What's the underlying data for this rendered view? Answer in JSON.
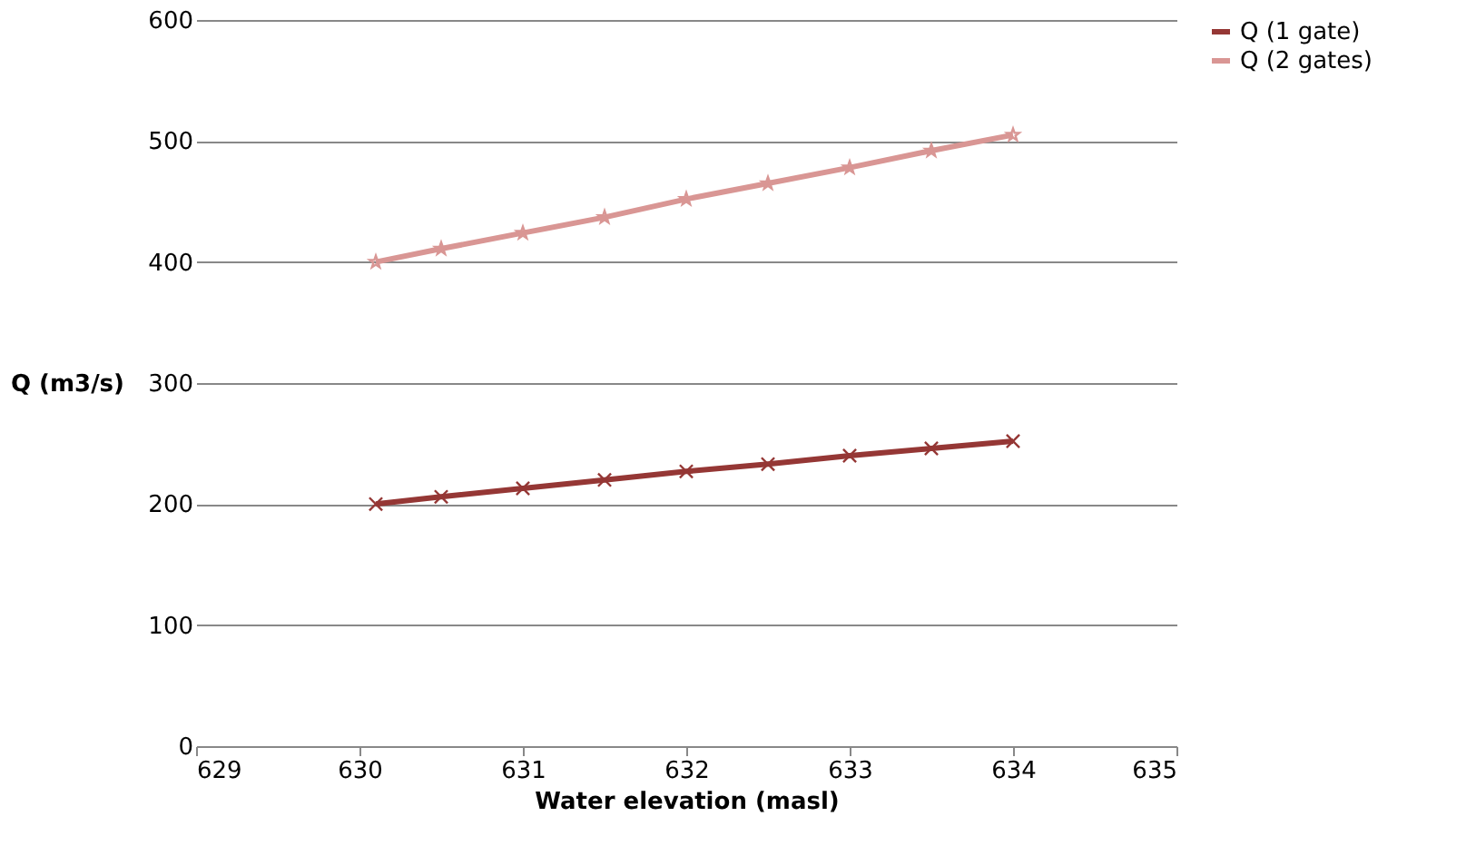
{
  "chart_data": {
    "type": "line",
    "xlabel": "Water elevation (masl)",
    "ylabel": "Q (m3/s)",
    "xlim": [
      629,
      635
    ],
    "xticks": [
      629,
      630,
      631,
      632,
      633,
      634,
      635
    ],
    "ylim": [
      0,
      600
    ],
    "yticks": [
      0,
      100,
      200,
      300,
      400,
      500,
      600
    ],
    "grid": "y",
    "legend": "right",
    "line_style": "solid",
    "series": [
      {
        "name": "Q (1 gate)",
        "color": "#953735",
        "marker": "cross",
        "x": [
          630.1,
          630.5,
          631,
          631.5,
          632,
          632.5,
          633,
          633.5,
          634
        ],
        "values": [
          200,
          206,
          213,
          220,
          227,
          233,
          240,
          246,
          252
        ]
      },
      {
        "name": "Q (2 gates)",
        "color": "#d99694",
        "marker": "star",
        "x": [
          630.1,
          630.5,
          631,
          631.5,
          632,
          632.5,
          633,
          633.5,
          634
        ],
        "values": [
          400,
          411,
          424,
          437,
          452,
          465,
          478,
          492,
          505
        ]
      }
    ]
  }
}
